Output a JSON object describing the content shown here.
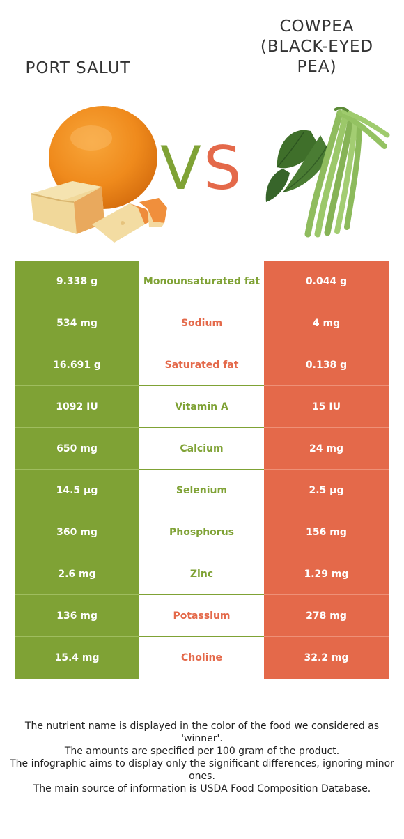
{
  "left_food": {
    "name": "PORT SALUT",
    "color": "#7fa235"
  },
  "right_food": {
    "name": "COWPEA (BLACK-EYED PEA)",
    "color": "#e4694a"
  },
  "vs": {
    "v": "V",
    "s": "S"
  },
  "rows": [
    {
      "left": "9.338 g",
      "nutrient": "Monounsaturated fat",
      "right": "0.044 g",
      "winner": "left"
    },
    {
      "left": "534 mg",
      "nutrient": "Sodium",
      "right": "4 mg",
      "winner": "right"
    },
    {
      "left": "16.691 g",
      "nutrient": "Saturated fat",
      "right": "0.138 g",
      "winner": "right"
    },
    {
      "left": "1092 IU",
      "nutrient": "Vitamin A",
      "right": "15 IU",
      "winner": "left"
    },
    {
      "left": "650 mg",
      "nutrient": "Calcium",
      "right": "24 mg",
      "winner": "left"
    },
    {
      "left": "14.5 µg",
      "nutrient": "Selenium",
      "right": "2.5 µg",
      "winner": "left"
    },
    {
      "left": "360 mg",
      "nutrient": "Phosphorus",
      "right": "156 mg",
      "winner": "left"
    },
    {
      "left": "2.6 mg",
      "nutrient": "Zinc",
      "right": "1.29 mg",
      "winner": "left"
    },
    {
      "left": "136 mg",
      "nutrient": "Potassium",
      "right": "278 mg",
      "winner": "right"
    },
    {
      "left": "15.4 mg",
      "nutrient": "Choline",
      "right": "32.2 mg",
      "winner": "right"
    }
  ],
  "footer": {
    "line1": "The nutrient name is displayed in the color of the food we considered as 'winner'.",
    "line2": "The amounts are specified per 100 gram of the product.",
    "line3": "The infographic aims to display only the significant differences, ignoring minor ones.",
    "line4": "The main source of information is USDA Food Composition Database."
  }
}
